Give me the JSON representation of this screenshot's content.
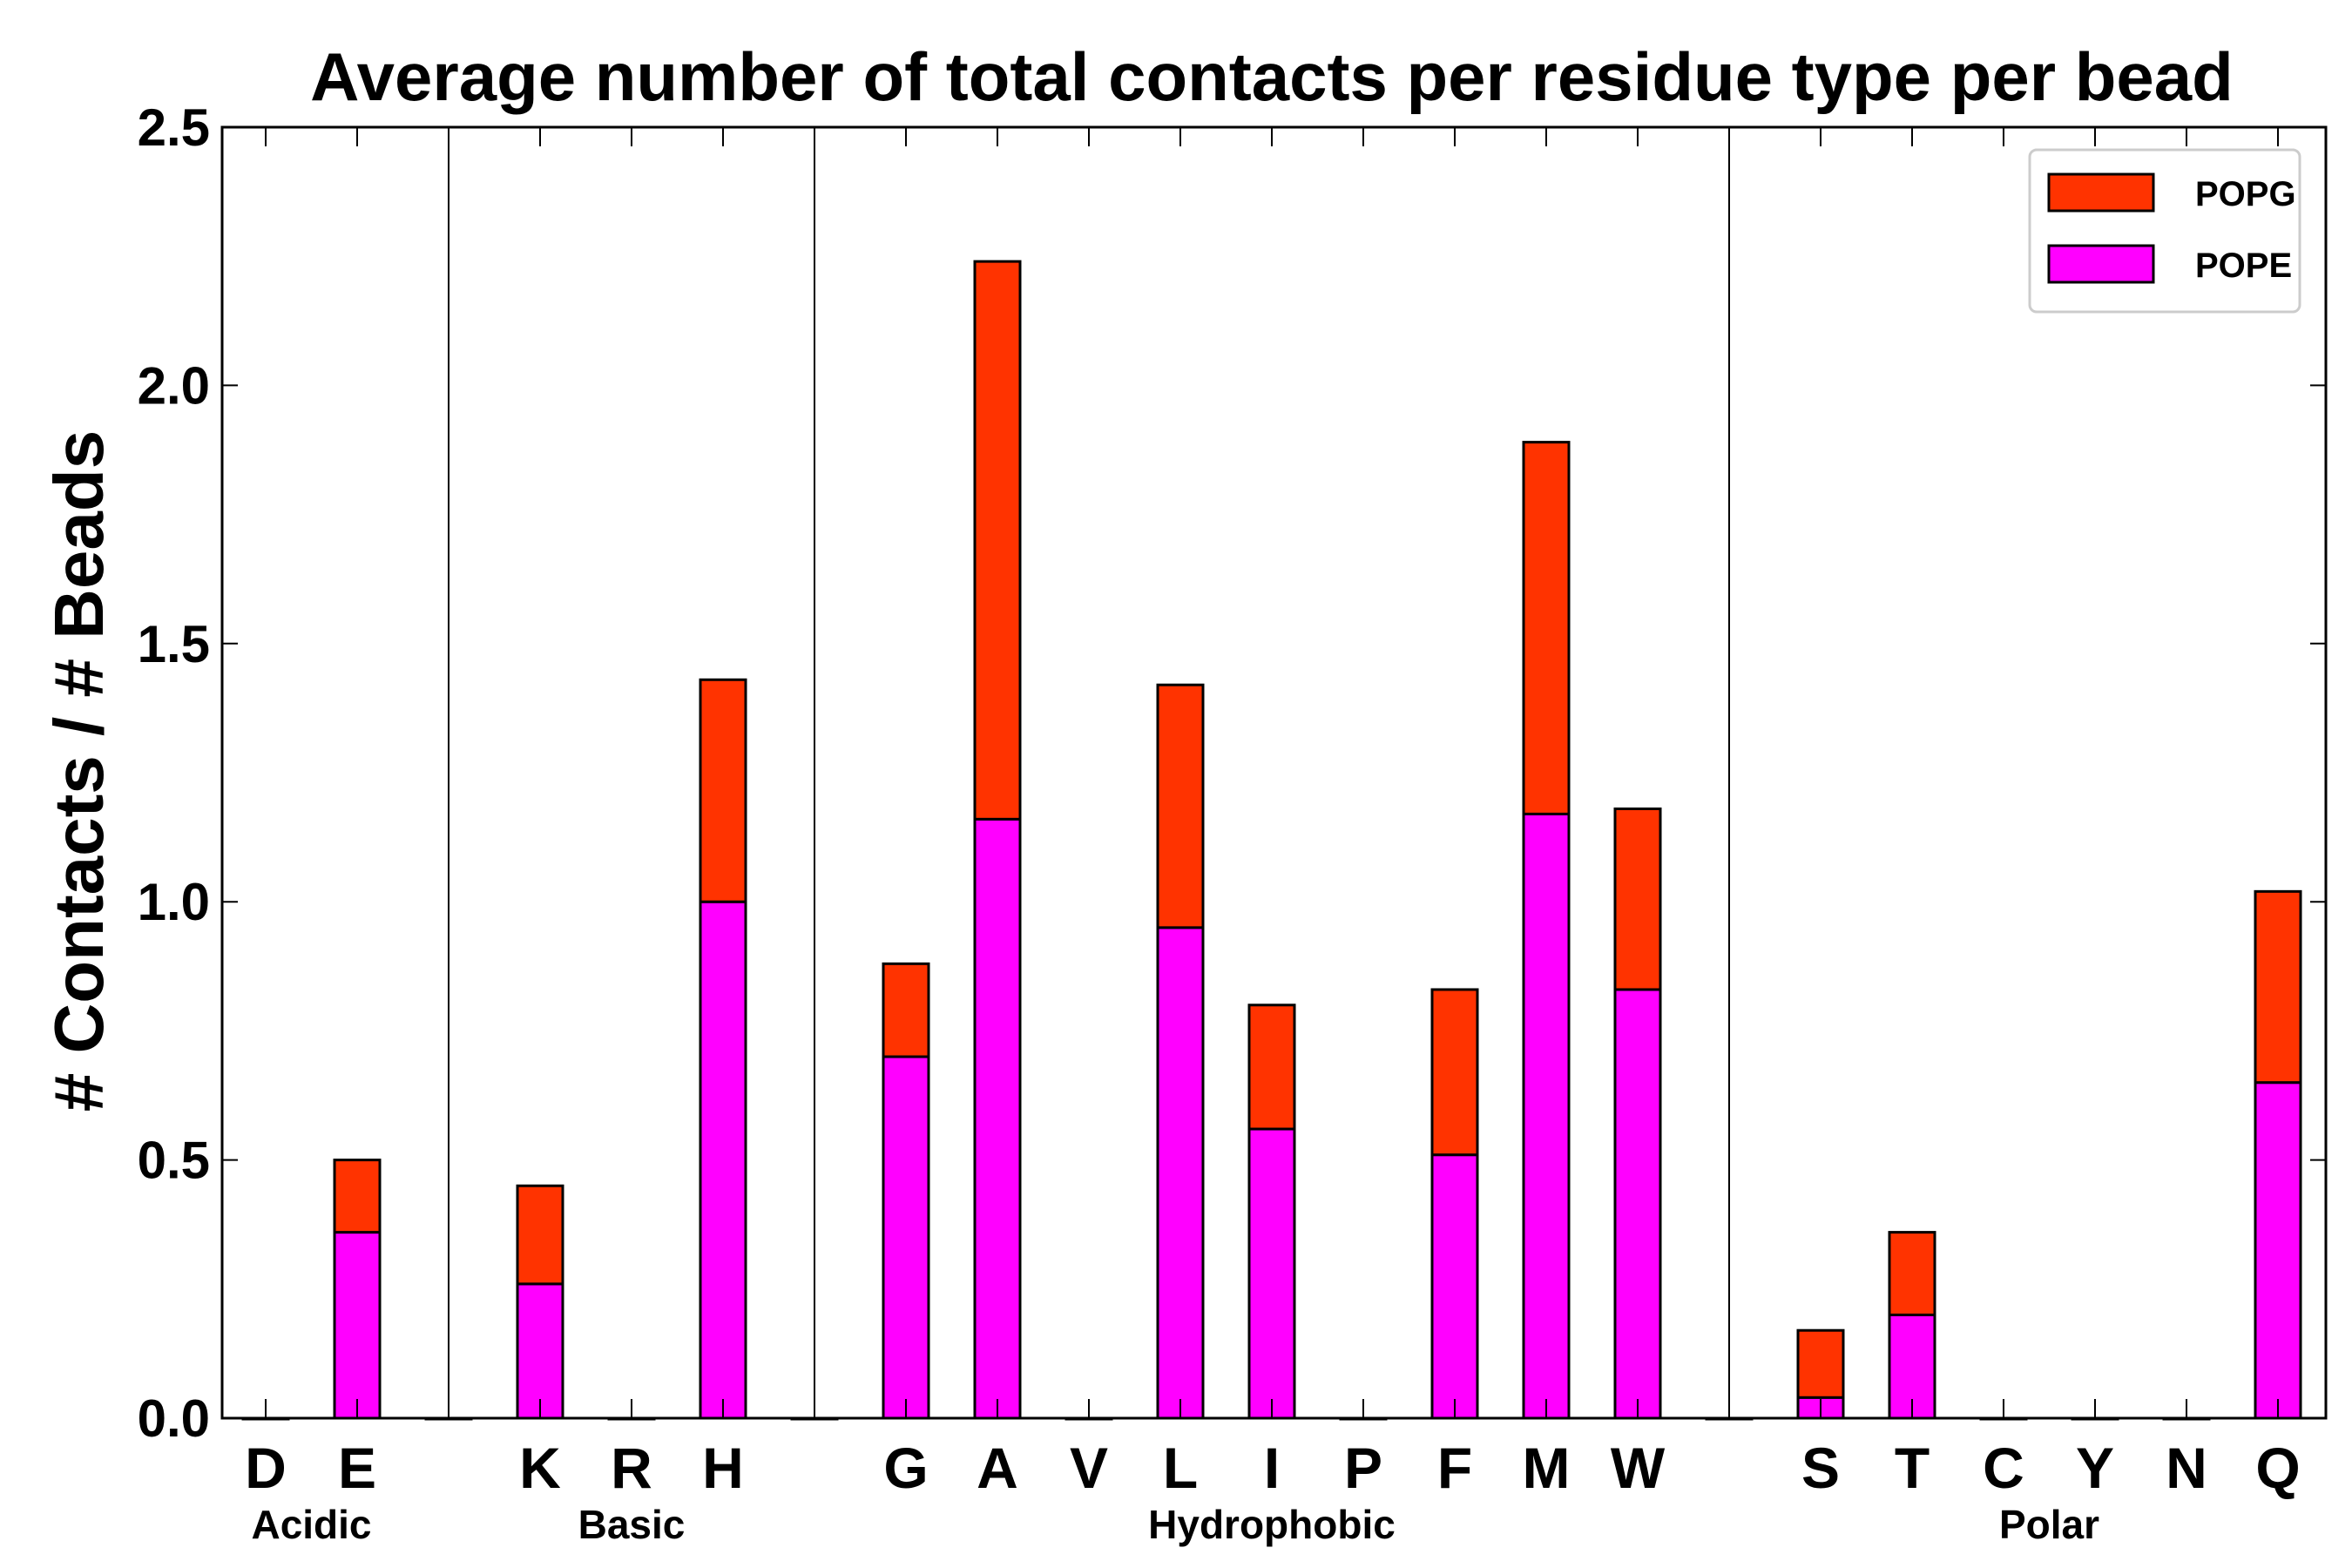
{
  "chart_data": {
    "type": "bar",
    "stacked": true,
    "title": "Average number of total contacts per residue type per bead",
    "xlabel": "",
    "ylabel": "# Contacts / # Beads",
    "ylim": [
      0,
      2.5
    ],
    "yticks": [
      "0.0",
      "0.5",
      "1.0",
      "1.5",
      "2.0",
      "2.5"
    ],
    "categories": [
      "D",
      "E",
      "",
      "K",
      "R",
      "H",
      "",
      "G",
      "A",
      "V",
      "L",
      "I",
      "P",
      "F",
      "M",
      "W",
      "",
      "S",
      "T",
      "C",
      "Y",
      "N",
      "Q"
    ],
    "series": [
      {
        "name": "POPE",
        "color": "#ff00ff",
        "values": [
          0,
          0.36,
          0,
          0.26,
          0,
          1.0,
          0,
          0.7,
          1.16,
          0,
          0.95,
          0.56,
          0,
          0.51,
          1.17,
          0.83,
          0,
          0.04,
          0.2,
          0,
          0,
          0,
          0.65
        ]
      },
      {
        "name": "POPG",
        "color": "#ff3300",
        "values": [
          0,
          0.14,
          0,
          0.19,
          0,
          0.43,
          0,
          0.18,
          1.08,
          0,
          0.47,
          0.24,
          0,
          0.32,
          0.72,
          0.35,
          0,
          0.13,
          0.16,
          0,
          0,
          0,
          0.37
        ]
      }
    ],
    "groups": [
      {
        "label": "Acidic"
      },
      {
        "label": "Basic"
      },
      {
        "label": "Hydrophobic"
      },
      {
        "label": "Polar"
      }
    ],
    "legend": {
      "position": "top-right",
      "entries": [
        {
          "label": "POPG",
          "color": "#ff3300"
        },
        {
          "label": "POPE",
          "color": "#ff00ff"
        }
      ]
    },
    "grid": false
  }
}
